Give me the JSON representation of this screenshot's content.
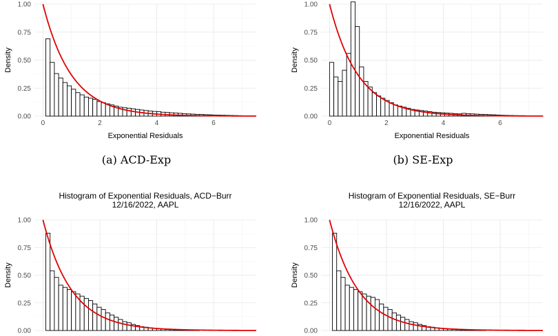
{
  "captions": [
    "(a) ACD-Exp",
    "(b) SE-Exp"
  ],
  "chart_data": [
    {
      "type": "bar",
      "title": "",
      "xlabel": "Exponential Residuals",
      "ylabel": "Density",
      "xlim": [
        -0.3,
        7.5
      ],
      "ylim": [
        0,
        1.0
      ],
      "yticks": [
        "0.00",
        "0.25",
        "0.50",
        "0.75",
        "1.00"
      ],
      "xticks": [
        "0",
        "2",
        "4",
        "6"
      ],
      "bin_width": 0.15,
      "bin_start": 0.1,
      "values": [
        0.69,
        0.48,
        0.38,
        0.34,
        0.3,
        0.27,
        0.24,
        0.21,
        0.19,
        0.17,
        0.16,
        0.15,
        0.13,
        0.12,
        0.11,
        0.1,
        0.09,
        0.08,
        0.075,
        0.07,
        0.065,
        0.06,
        0.055,
        0.05,
        0.045,
        0.042,
        0.04,
        0.035,
        0.033,
        0.03,
        0.028,
        0.025,
        0.022,
        0.02,
        0.018,
        0.016,
        0.015,
        0.013,
        0.012,
        0.01,
        0.009,
        0.008,
        0.007,
        0.006,
        0.005,
        0.004,
        0.003,
        0.003,
        0.002
      ],
      "curve": "exp(-x)"
    },
    {
      "type": "bar",
      "title": "",
      "xlabel": "Exponential Residuals",
      "ylabel": "Density",
      "xlim": [
        -0.3,
        7.5
      ],
      "ylim": [
        0,
        1.0
      ],
      "yticks": [
        "0.00",
        "0.25",
        "0.50",
        "0.75",
        "1.00"
      ],
      "xticks": [
        "0",
        "2",
        "4",
        "6"
      ],
      "bin_width": 0.15,
      "bin_start": 0.0,
      "values": [
        0.48,
        0.35,
        0.31,
        0.41,
        0.56,
        1.02,
        0.8,
        0.44,
        0.31,
        0.26,
        0.21,
        0.18,
        0.16,
        0.14,
        0.12,
        0.1,
        0.09,
        0.08,
        0.07,
        0.06,
        0.055,
        0.05,
        0.045,
        0.04,
        0.035,
        0.032,
        0.03,
        0.027,
        0.025,
        0.022,
        0.02,
        0.025,
        0.022,
        0.02,
        0.018,
        0.016,
        0.015,
        0.013,
        0.012,
        0.01,
        0.008,
        0.007,
        0.006,
        0.005,
        0.004,
        0.004,
        0.003,
        0.003,
        0.002,
        0.002
      ],
      "curve": "exp(-x)"
    },
    {
      "type": "bar",
      "title": "Histogram of Exponential Residuals, ACD−Burr\n12/16/2022, AAPL",
      "xlabel": "",
      "ylabel": "Density",
      "xlim": [
        -0.3,
        7.5
      ],
      "ylim": [
        0,
        1.0
      ],
      "yticks": [
        "0.00",
        "0.25",
        "0.50",
        "0.75",
        "1.00"
      ],
      "xticks": [],
      "bin_width": 0.15,
      "bin_start": 0.1,
      "values": [
        0.88,
        0.54,
        0.48,
        0.41,
        0.39,
        0.37,
        0.35,
        0.33,
        0.31,
        0.29,
        0.27,
        0.24,
        0.21,
        0.19,
        0.16,
        0.14,
        0.12,
        0.1,
        0.08,
        0.07,
        0.055,
        0.045,
        0.035,
        0.03,
        0.025,
        0.02,
        0.015,
        0.012,
        0.01,
        0.008,
        0.006,
        0.005,
        0.004,
        0.003,
        0.002,
        0.002
      ],
      "curve": "exp(-x)"
    },
    {
      "type": "bar",
      "title": "Histogram of Exponential Residuals, SE−Burr\n12/16/2022, AAPL",
      "xlabel": "",
      "ylabel": "Density",
      "xlim": [
        -0.3,
        7.5
      ],
      "ylim": [
        0,
        1.0
      ],
      "yticks": [
        "0.00",
        "0.25",
        "0.50",
        "0.75",
        "1.00"
      ],
      "xticks": [],
      "bin_width": 0.15,
      "bin_start": 0.1,
      "values": [
        0.88,
        0.54,
        0.48,
        0.41,
        0.39,
        0.37,
        0.35,
        0.33,
        0.31,
        0.3,
        0.28,
        0.24,
        0.21,
        0.19,
        0.16,
        0.14,
        0.12,
        0.1,
        0.08,
        0.07,
        0.055,
        0.045,
        0.035,
        0.03,
        0.025,
        0.02,
        0.015,
        0.012,
        0.01,
        0.008,
        0.006,
        0.005,
        0.004,
        0.003,
        0.002,
        0.002
      ],
      "curve": "exp(-x)"
    }
  ]
}
